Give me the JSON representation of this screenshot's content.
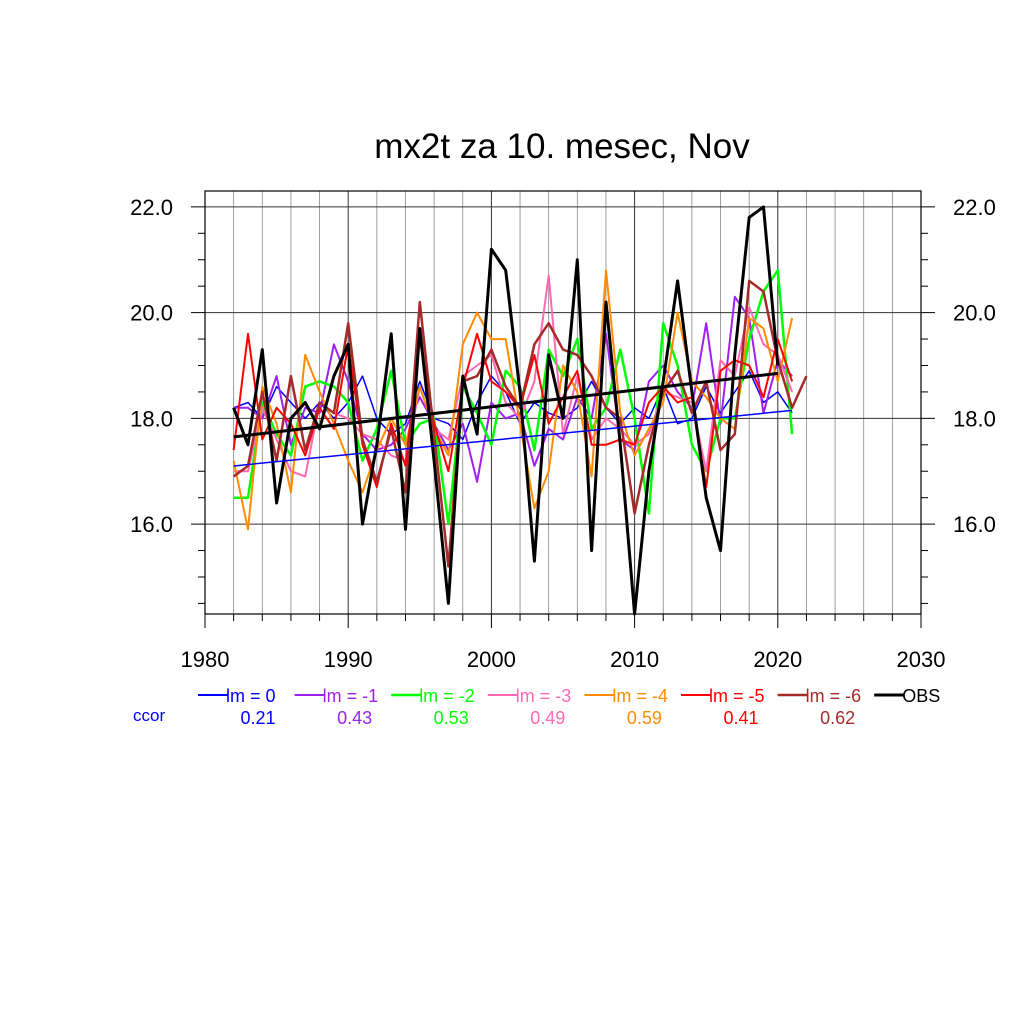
{
  "chart_data": {
    "type": "line",
    "title": "mx2t za 10. mesec, Nov",
    "xlim": [
      1980,
      2030
    ],
    "ylim": [
      14.3,
      22.3
    ],
    "x_ticks": [
      1980,
      1990,
      2000,
      2010,
      2020,
      2030
    ],
    "x_tick_labels": [
      "1980",
      "1990",
      "2000",
      "2010",
      "2020",
      "2030"
    ],
    "y_ticks": [
      16,
      18,
      20,
      22
    ],
    "y_tick_labels": [
      "16.0",
      "18.0",
      "20.0",
      "22.0"
    ],
    "grid": true,
    "legend_position": "bottom",
    "ccor_label": "ccor",
    "series": [
      {
        "name": "lm = 0",
        "color": "#0000ff",
        "width": 1.5,
        "ccor": "0.21",
        "x": [
          1982,
          1983,
          1984,
          1985,
          1986,
          1987,
          1988,
          1989,
          1990,
          1991,
          1992,
          1993,
          1994,
          1995,
          1996,
          1997,
          1998,
          1999,
          2000,
          2001,
          2002,
          2003,
          2004,
          2005,
          2006,
          2007,
          2008,
          2009,
          2010,
          2011,
          2012,
          2013,
          2014,
          2015,
          2016,
          2017,
          2018,
          2019,
          2020,
          2021
        ],
        "values": [
          18.2,
          18.3,
          18.0,
          18.6,
          18.3,
          18.0,
          18.3,
          18.0,
          18.3,
          18.8,
          18.0,
          17.7,
          17.9,
          18.7,
          18.0,
          17.9,
          17.6,
          18.3,
          18.8,
          18.5,
          17.9,
          18.3,
          18.1,
          18.0,
          18.2,
          18.7,
          18.2,
          17.9,
          18.2,
          18.0,
          18.6,
          17.9,
          18.0,
          18.6,
          18.1,
          18.5,
          18.9,
          18.3,
          18.5,
          18.1
        ]
      },
      {
        "name": "lm = -1",
        "color": "#a020f0",
        "width": 2,
        "ccor": "0.43",
        "x": [
          1982,
          1983,
          1984,
          1985,
          1986,
          1987,
          1988,
          1989,
          1990,
          1991,
          1992,
          1993,
          1994,
          1995,
          1996,
          1997,
          1998,
          1999,
          2000,
          2001,
          2002,
          2003,
          2004,
          2005,
          2006,
          2007,
          2008,
          2009,
          2010,
          2011,
          2012,
          2013,
          2014,
          2015,
          2016,
          2017,
          2018,
          2019,
          2020,
          2021
        ],
        "values": [
          18.2,
          18.2,
          18.0,
          18.8,
          17.5,
          18.2,
          18.1,
          19.4,
          18.7,
          17.7,
          17.4,
          17.5,
          17.8,
          18.4,
          17.9,
          17.4,
          17.9,
          16.8,
          18.3,
          18.0,
          18.1,
          17.1,
          17.8,
          17.6,
          18.4,
          18.0,
          19.6,
          17.6,
          17.4,
          18.7,
          19.0,
          18.5,
          18.2,
          19.8,
          17.9,
          20.3,
          19.9,
          18.1,
          19.1,
          18.8
        ]
      },
      {
        "name": "lm = -2",
        "color": "#00ff00",
        "width": 2.5,
        "ccor": "0.53",
        "x": [
          1982,
          1983,
          1984,
          1985,
          1986,
          1987,
          1988,
          1989,
          1990,
          1991,
          1992,
          1993,
          1994,
          1995,
          1996,
          1997,
          1998,
          1999,
          2000,
          2001,
          2002,
          2003,
          2004,
          2005,
          2006,
          2007,
          2008,
          2009,
          2010,
          2011,
          2012,
          2013,
          2014,
          2015,
          2016,
          2017,
          2018,
          2019,
          2020,
          2021
        ],
        "values": [
          16.5,
          16.5,
          18.3,
          17.7,
          17.3,
          18.6,
          18.7,
          18.6,
          18.3,
          17.2,
          17.8,
          18.9,
          17.5,
          17.9,
          18.0,
          16.0,
          18.6,
          18.1,
          17.5,
          18.9,
          18.6,
          17.4,
          19.3,
          18.8,
          19.5,
          17.8,
          18.2,
          19.3,
          18.0,
          16.2,
          19.8,
          19.0,
          17.5,
          17.0,
          18.0,
          18.0,
          19.5,
          20.4,
          20.8,
          17.7
        ]
      },
      {
        "name": "lm = -3",
        "color": "#ff69b4",
        "width": 2,
        "ccor": "0.49",
        "x": [
          1982,
          1983,
          1984,
          1985,
          1986,
          1987,
          1988,
          1989,
          1990,
          1991,
          1992,
          1993,
          1994,
          1995,
          1996,
          1997,
          1998,
          1999,
          2000,
          2001,
          2002,
          2003,
          2004,
          2005,
          2006,
          2007,
          2008,
          2009,
          2010,
          2011,
          2012,
          2013,
          2014,
          2015,
          2016,
          2017,
          2018,
          2019,
          2020,
          2021
        ],
        "values": [
          17.0,
          17.0,
          18.2,
          17.6,
          17.0,
          16.9,
          18.3,
          18.1,
          18.0,
          17.7,
          17.6,
          17.3,
          17.2,
          18.6,
          17.8,
          17.6,
          18.8,
          19.0,
          19.2,
          18.3,
          18.0,
          18.7,
          20.7,
          17.7,
          18.8,
          17.6,
          18.0,
          17.8,
          17.5,
          17.7,
          18.5,
          18.4,
          18.3,
          17.0,
          19.1,
          18.8,
          20.1,
          19.4,
          19.2,
          18.5
        ]
      },
      {
        "name": "lm = -4",
        "color": "#ff8c00",
        "width": 2,
        "ccor": "0.59",
        "x": [
          1982,
          1983,
          1984,
          1985,
          1986,
          1987,
          1988,
          1989,
          1990,
          1991,
          1992,
          1993,
          1994,
          1995,
          1996,
          1997,
          1998,
          1999,
          2000,
          2001,
          2002,
          2003,
          2004,
          2005,
          2006,
          2007,
          2008,
          2009,
          2010,
          2011,
          2012,
          2013,
          2014,
          2015,
          2016,
          2017,
          2018,
          2019,
          2020,
          2021
        ],
        "values": [
          17.2,
          15.9,
          18.6,
          17.9,
          16.6,
          19.2,
          18.5,
          17.9,
          17.2,
          16.6,
          17.4,
          18.0,
          17.5,
          18.6,
          17.8,
          17.3,
          19.4,
          20.0,
          19.5,
          19.5,
          17.9,
          16.3,
          17.0,
          19.0,
          18.5,
          16.9,
          20.8,
          18.1,
          17.3,
          17.8,
          18.3,
          20.0,
          18.7,
          18.4,
          18.0,
          17.8,
          19.9,
          19.7,
          18.7,
          19.9
        ]
      },
      {
        "name": "lm = -5",
        "color": "#ff0000",
        "width": 2,
        "ccor": "0.41",
        "x": [
          1982,
          1983,
          1984,
          1985,
          1986,
          1987,
          1988,
          1989,
          1990,
          1991,
          1992,
          1993,
          1994,
          1995,
          1996,
          1997,
          1998,
          1999,
          2000,
          2001,
          2002,
          2003,
          2004,
          2005,
          2006,
          2007,
          2008,
          2009,
          2010,
          2011,
          2012,
          2013,
          2014,
          2015,
          2016,
          2017,
          2018,
          2019,
          2020,
          2021
        ],
        "values": [
          17.4,
          19.6,
          17.6,
          18.2,
          17.9,
          17.3,
          18.2,
          17.8,
          19.4,
          17.5,
          16.7,
          17.9,
          17.1,
          19.5,
          17.9,
          17.0,
          18.6,
          19.6,
          18.7,
          18.5,
          18.2,
          19.2,
          17.9,
          18.4,
          18.9,
          17.5,
          17.5,
          17.6,
          17.5,
          18.3,
          18.6,
          18.3,
          18.4,
          16.7,
          18.9,
          19.1,
          19.0,
          18.4,
          19.5,
          18.7
        ]
      },
      {
        "name": "lm = -6",
        "color": "#a52a2a",
        "width": 2.5,
        "ccor": "0.62",
        "x": [
          1982,
          1983,
          1984,
          1985,
          1986,
          1987,
          1988,
          1989,
          1990,
          1991,
          1992,
          1993,
          1994,
          1995,
          1996,
          1997,
          1998,
          1999,
          2000,
          2001,
          2002,
          2003,
          2004,
          2005,
          2006,
          2007,
          2008,
          2009,
          2010,
          2011,
          2012,
          2013,
          2014,
          2015,
          2016,
          2017,
          2018,
          2019,
          2020,
          2021,
          2022
        ],
        "values": [
          16.9,
          17.1,
          18.5,
          17.2,
          18.8,
          17.4,
          18.3,
          18.1,
          19.8,
          17.6,
          16.8,
          17.8,
          16.6,
          20.2,
          17.7,
          15.2,
          18.7,
          18.8,
          19.3,
          18.6,
          18.2,
          19.4,
          19.8,
          19.3,
          19.2,
          18.8,
          18.2,
          18.0,
          16.2,
          17.5,
          18.5,
          18.9,
          18.1,
          18.7,
          17.4,
          17.7,
          20.6,
          20.4,
          19.1,
          18.2,
          18.8
        ]
      },
      {
        "name": "OBS",
        "color": "#000000",
        "width": 3,
        "x": [
          1982,
          1983,
          1984,
          1985,
          1986,
          1987,
          1988,
          1989,
          1990,
          1991,
          1992,
          1993,
          1994,
          1995,
          1996,
          1997,
          1998,
          1999,
          2000,
          2001,
          2002,
          2003,
          2004,
          2005,
          2006,
          2007,
          2008,
          2009,
          2010,
          2011,
          2012,
          2013,
          2014,
          2015,
          2016,
          2017,
          2018,
          2019,
          2020
        ],
        "values": [
          18.2,
          17.5,
          19.3,
          16.4,
          18.0,
          18.3,
          17.8,
          18.8,
          19.4,
          16.0,
          17.5,
          19.6,
          15.9,
          19.7,
          17.2,
          14.5,
          18.8,
          17.7,
          21.2,
          20.8,
          18.5,
          15.3,
          19.2,
          18.0,
          21.0,
          15.5,
          20.2,
          17.5,
          14.3,
          17.0,
          18.7,
          20.6,
          18.5,
          16.5,
          15.5,
          19.2,
          21.8,
          22.0,
          19.0
        ]
      }
    ],
    "trend_lines": [
      {
        "color": "#0000ff",
        "width": 1.5,
        "x": [
          1982,
          2021
        ],
        "values": [
          17.1,
          18.15
        ]
      },
      {
        "color": "#000000",
        "width": 3,
        "x": [
          1982,
          2020
        ],
        "values": [
          17.65,
          18.85
        ]
      }
    ]
  }
}
